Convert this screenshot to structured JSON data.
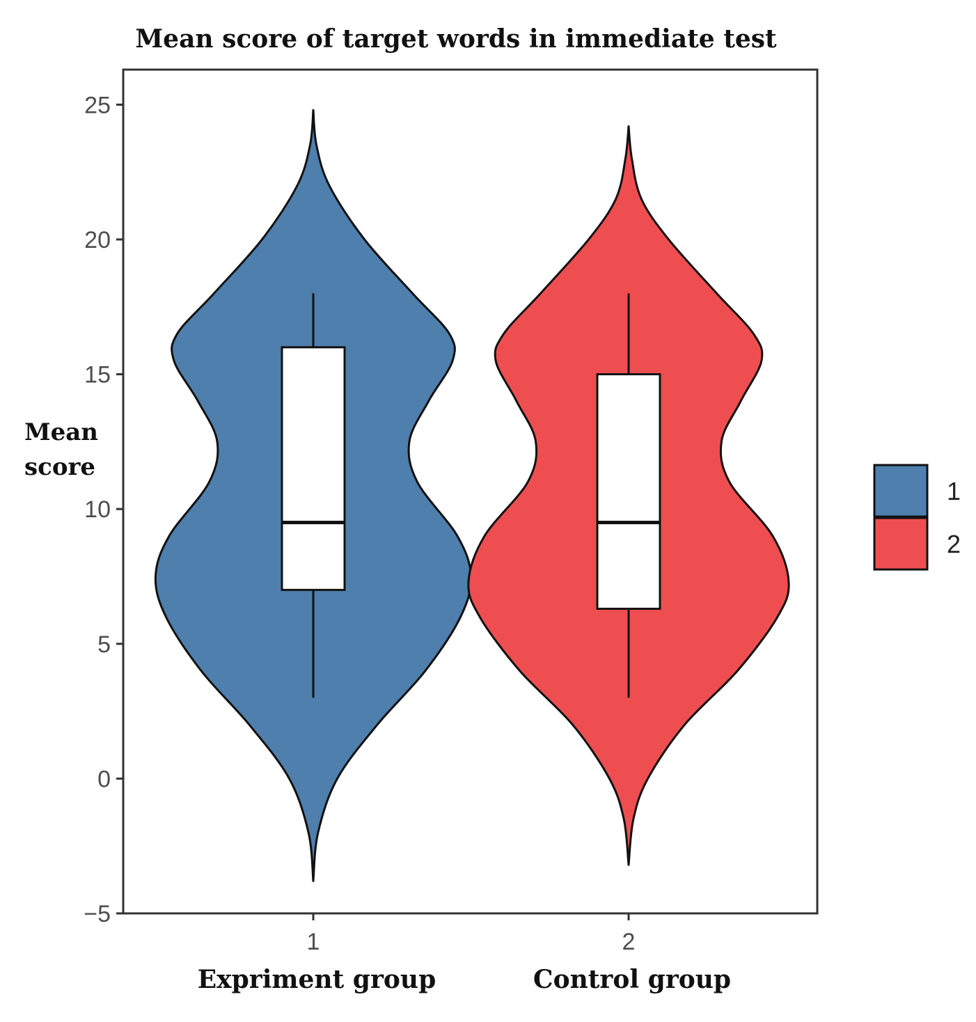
{
  "chart_data": {
    "type": "violin",
    "title": "Mean score of target words in immediate test",
    "ylabel_lines": [
      "Mean",
      "score"
    ],
    "ylim": [
      -5,
      26.3
    ],
    "yticks": [
      "-5",
      "0",
      "5",
      "10",
      "15",
      "20",
      "25"
    ],
    "grid": false,
    "legend_position": "right",
    "series": [
      {
        "category": "1",
        "group_label": "Expriment group",
        "legend_label": "1",
        "color": "#4e7fad",
        "violin_range": [
          -3.8,
          24.8
        ],
        "density": [
          [
            -3.8,
            0.0
          ],
          [
            -2,
            0.03
          ],
          [
            0,
            0.15
          ],
          [
            2,
            0.4
          ],
          [
            4,
            0.7
          ],
          [
            6,
            0.92
          ],
          [
            7.5,
            0.985
          ],
          [
            9,
            0.9
          ],
          [
            11,
            0.65
          ],
          [
            12.5,
            0.6
          ],
          [
            14,
            0.72
          ],
          [
            15.5,
            0.87
          ],
          [
            16.5,
            0.85
          ],
          [
            18,
            0.62
          ],
          [
            20,
            0.32
          ],
          [
            22,
            0.1
          ],
          [
            23.5,
            0.02
          ],
          [
            24.8,
            0.0
          ]
        ],
        "box": {
          "whisker_low": 3,
          "q1": 7,
          "median": 9.5,
          "q3": 16,
          "whisker_high": 18
        }
      },
      {
        "category": "2",
        "group_label": "Control group",
        "legend_label": "2",
        "color": "#ef4e51",
        "violin_range": [
          -3.2,
          24.2
        ],
        "density": [
          [
            -3.2,
            0.0
          ],
          [
            -1.5,
            0.03
          ],
          [
            0,
            0.12
          ],
          [
            2,
            0.35
          ],
          [
            4,
            0.68
          ],
          [
            6,
            0.93
          ],
          [
            7.3,
            1.0
          ],
          [
            9,
            0.9
          ],
          [
            11,
            0.63
          ],
          [
            12.5,
            0.58
          ],
          [
            14,
            0.7
          ],
          [
            15.5,
            0.83
          ],
          [
            16.5,
            0.78
          ],
          [
            18,
            0.55
          ],
          [
            20,
            0.25
          ],
          [
            21.5,
            0.08
          ],
          [
            23,
            0.02
          ],
          [
            24.2,
            0.0
          ]
        ],
        "box": {
          "whisker_low": 3,
          "q1": 6.3,
          "median": 9.5,
          "q3": 15,
          "whisker_high": 18
        }
      }
    ]
  }
}
